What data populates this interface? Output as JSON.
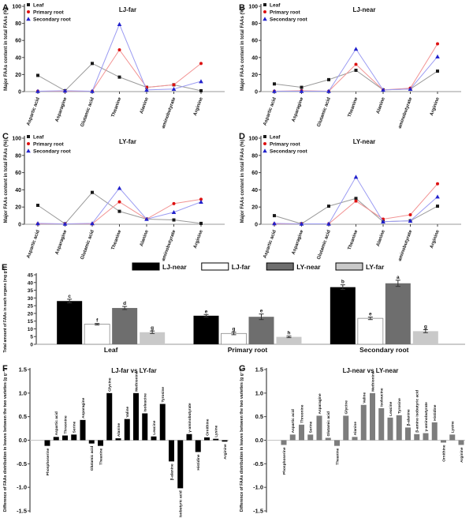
{
  "figure": {
    "background": "#ffffff"
  },
  "chart_data": [
    {
      "id": "A",
      "panel_label": "A",
      "type": "line",
      "title": "LJ-far",
      "ylabel": "Major FAAs content in total FAAs (%)",
      "ylim": [
        0,
        100
      ],
      "yticks": [
        0,
        20,
        40,
        60,
        80,
        100
      ],
      "categories": [
        "Aspartic acid",
        "Asparagine",
        "Glutamic acid",
        "Theanine",
        "Alanine",
        "γ-aminobutyrate",
        "Arginine"
      ],
      "series": [
        {
          "name": "Leaf",
          "marker": "square",
          "line_color": "#9a9a9a",
          "marker_color": "#1a1a1a",
          "values": [
            19,
            1,
            33,
            17,
            5,
            8,
            1
          ]
        },
        {
          "name": "Primary root",
          "marker": "circle",
          "line_color": "#f29393",
          "marker_color": "#dd1111",
          "values": [
            0.5,
            0.5,
            0.5,
            49,
            5,
            8,
            33
          ]
        },
        {
          "name": "Secondary root",
          "marker": "triangle",
          "line_color": "#9b9bf2",
          "marker_color": "#2222cc",
          "values": [
            0.5,
            1,
            0.5,
            79,
            2,
            3,
            12
          ]
        }
      ]
    },
    {
      "id": "B",
      "panel_label": "B",
      "type": "line",
      "title": "LJ-near",
      "ylabel": "Major FAAs content in total FAAs (%)",
      "ylim": [
        0,
        100
      ],
      "yticks": [
        0,
        20,
        40,
        60,
        80,
        100
      ],
      "categories": [
        "Aspartic acid",
        "Asparagine",
        "Glutamic acid",
        "Theanine",
        "Alanine",
        "γ-aminobutyrate",
        "Arginine"
      ],
      "series": [
        {
          "name": "Leaf",
          "marker": "square",
          "line_color": "#9a9a9a",
          "marker_color": "#1a1a1a",
          "values": [
            9,
            5,
            14,
            25,
            2,
            3,
            24
          ]
        },
        {
          "name": "Primary root",
          "marker": "circle",
          "line_color": "#f29393",
          "marker_color": "#dd1111",
          "values": [
            0.5,
            1,
            0.5,
            32,
            2,
            4,
            56
          ]
        },
        {
          "name": "Secondary root",
          "marker": "triangle",
          "line_color": "#9b9bf2",
          "marker_color": "#2222cc",
          "values": [
            0.5,
            0.5,
            0.5,
            50,
            2,
            3,
            41
          ]
        }
      ]
    },
    {
      "id": "C",
      "panel_label": "C",
      "type": "line",
      "title": "LY-far",
      "ylabel": "Major FAAs content in total FAAs (%)",
      "ylim": [
        0,
        100
      ],
      "yticks": [
        0,
        20,
        40,
        60,
        80,
        100
      ],
      "categories": [
        "Aspartic acid",
        "Asparagine",
        "Glutamic acid",
        "Theanine",
        "Alanine",
        "γ-aminobutyrate",
        "Arginine"
      ],
      "series": [
        {
          "name": "Leaf",
          "marker": "square",
          "line_color": "#9a9a9a",
          "marker_color": "#1a1a1a",
          "values": [
            22,
            0.5,
            37,
            15,
            6,
            5,
            1
          ]
        },
        {
          "name": "Primary root",
          "marker": "circle",
          "line_color": "#f29393",
          "marker_color": "#dd1111",
          "values": [
            0.5,
            0.5,
            0.5,
            26,
            6,
            24,
            29
          ]
        },
        {
          "name": "Secondary root",
          "marker": "triangle",
          "line_color": "#9b9bf2",
          "marker_color": "#2222cc",
          "values": [
            1,
            0.5,
            1,
            42,
            6,
            14,
            26
          ]
        }
      ]
    },
    {
      "id": "D",
      "panel_label": "D",
      "type": "line",
      "title": "LY-near",
      "ylabel": "Major FAAs content in total FAAs (%)",
      "ylim": [
        0,
        100
      ],
      "yticks": [
        0,
        20,
        40,
        60,
        80,
        100
      ],
      "categories": [
        "Aspartic acid",
        "Asparagine",
        "Glutamic acid",
        "Theanine",
        "Alanine",
        "γ-aminobutyrate",
        "Arginine"
      ],
      "series": [
        {
          "name": "Leaf",
          "marker": "square",
          "line_color": "#9a9a9a",
          "marker_color": "#1a1a1a",
          "values": [
            10,
            0.5,
            21,
            30,
            3,
            4,
            21
          ]
        },
        {
          "name": "Primary root",
          "marker": "circle",
          "line_color": "#f29393",
          "marker_color": "#dd1111",
          "values": [
            0.5,
            0.5,
            0.5,
            27,
            6,
            11,
            47
          ]
        },
        {
          "name": "Secondary root",
          "marker": "triangle",
          "line_color": "#9b9bf2",
          "marker_color": "#2222cc",
          "values": [
            1,
            0.5,
            0.5,
            55,
            3,
            4,
            32
          ]
        }
      ]
    },
    {
      "id": "E",
      "panel_label": "E",
      "type": "grouped_bar",
      "ylabel": "Total amount of FAAs in each organs (mg g⁻¹)",
      "ylim": [
        0,
        45
      ],
      "yticks": [
        0,
        5,
        10,
        15,
        20,
        25,
        30,
        35,
        40,
        45
      ],
      "categories": [
        "Leaf",
        "Primary root",
        "Secondary root"
      ],
      "series": [
        {
          "name": "LJ-near",
          "color": "#000000",
          "values": [
            28,
            18.5,
            37
          ],
          "errors": [
            1.2,
            0.8,
            1.5
          ],
          "letters": [
            "c",
            "e",
            "b"
          ]
        },
        {
          "name": "LJ-far",
          "color": "#ffffff",
          "values": [
            13,
            7,
            16.8
          ],
          "errors": [
            0.5,
            0.8,
            0.8
          ],
          "letters": [
            "f",
            "g",
            "e"
          ]
        },
        {
          "name": "LY-near",
          "color": "#6e6e6e",
          "values": [
            23.5,
            17.8,
            39.5
          ],
          "errors": [
            1.0,
            1.8,
            2.0
          ],
          "letters": [
            "d",
            "e",
            "a"
          ]
        },
        {
          "name": "LY-far",
          "color": "#c9c9c9",
          "values": [
            7.8,
            4.8,
            8.5
          ],
          "errors": [
            0.8,
            0.5,
            1.0
          ],
          "letters": [
            "g",
            "h",
            "g"
          ]
        }
      ]
    },
    {
      "id": "F",
      "panel_label": "F",
      "type": "diff_bar",
      "title": "LJ-far vs LY-far",
      "ylabel": "Difference of FAAs distribution in leaves between the two varieties (g g⁻¹)",
      "ylim": [
        -1.5,
        1.5
      ],
      "yticks": [
        "1.5",
        "1.0",
        "0.5",
        "0.0",
        "-0.5",
        "-1.0",
        "-1.5"
      ],
      "bar_color": "#000000",
      "categories": [
        "Phosphoserine",
        "Aspartic acid",
        "Threonine",
        "Serine",
        "Asparagine",
        "Glutamic acid",
        "Theanine",
        "Glycine",
        "Alanine",
        "Valine",
        "Methionine",
        "Isoleucine",
        "Leucine",
        "Tyrosine",
        "β-alanine",
        "β-amino isobutyric acid",
        "γ-aminobutyrate",
        "Histidine",
        "Ornithine",
        "Lysine",
        "Arginine"
      ],
      "values": [
        -0.12,
        0.07,
        0.1,
        0.12,
        0.43,
        -0.07,
        -0.12,
        1.0,
        0.04,
        0.45,
        1.0,
        0.57,
        0.08,
        0.77,
        -0.45,
        -1.02,
        0.13,
        -0.25,
        0.06,
        0.03,
        -0.03
      ]
    },
    {
      "id": "G",
      "panel_label": "G",
      "type": "diff_bar",
      "title": "LJ-near vs LY-near",
      "ylabel": "Difference of FAAs distribution in leaves between the two varieties (g g⁻¹)",
      "ylim": [
        -1.5,
        1.5
      ],
      "yticks": [
        "1.5",
        "1.0",
        "0.5",
        "0.0",
        "-0.5",
        "-1.0",
        "-1.5"
      ],
      "bar_color": "#7d7d7d",
      "categories": [
        "Phosphoserine",
        "Aspartic acid",
        "Threonine",
        "Serine",
        "Asparagine",
        "Glutamic acid",
        "Theanine",
        "Glycine",
        "Alanine",
        "Valine",
        "Methionine",
        "Isoleucine",
        "Leucine",
        "Tyrosine",
        "β-alanine",
        "β-amino isobutyric acid",
        "γ-aminobutyrate",
        "Histidine",
        "Ornithine",
        "Lysine",
        "Arginine"
      ],
      "values": [
        -0.1,
        0.12,
        0.33,
        0.12,
        0.52,
        0.05,
        -0.12,
        0.52,
        0.07,
        0.75,
        1.0,
        0.68,
        0.48,
        0.53,
        0.27,
        0.13,
        0.15,
        0.38,
        -0.05,
        0.12,
        -0.1
      ]
    }
  ]
}
